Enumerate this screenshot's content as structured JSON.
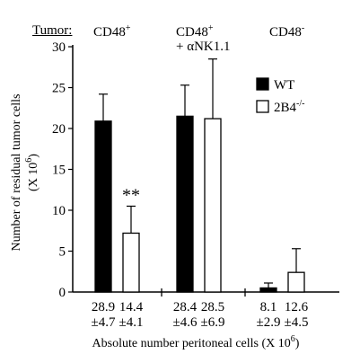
{
  "chart_data": {
    "type": "bar",
    "tumor_label": "Tumor:",
    "groups": [
      {
        "label": "CD48",
        "label_sup": "+",
        "label_line2": ""
      },
      {
        "label": "CD48",
        "label_sup": "+",
        "label_line2": "+ αNK1.1"
      },
      {
        "label": "CD48",
        "label_sup": "-",
        "label_line2": ""
      }
    ],
    "series": [
      {
        "name": "WT",
        "color": "#000000",
        "values": [
          20.9,
          21.5,
          0.5
        ],
        "errors": [
          3.3,
          3.8,
          0.6
        ]
      },
      {
        "name": "2B4",
        "name_sup": "-/-",
        "color": "#ffffff",
        "values": [
          7.2,
          21.2,
          2.4
        ],
        "errors": [
          3.3,
          7.3,
          2.9
        ]
      }
    ],
    "significance": [
      {
        "group": 0,
        "series": 1,
        "label": "**"
      }
    ],
    "cell_counts": [
      [
        "28.9",
        "±4.7"
      ],
      [
        "14.4",
        "±4.1"
      ],
      [
        "28.4",
        "±4.6"
      ],
      [
        "28.5",
        "±6.9"
      ],
      [
        "8.1",
        "±2.9"
      ],
      [
        "12.6",
        "±4.5"
      ]
    ],
    "ylabel_line1": "Number of residual tumor cells",
    "ylabel_line2_pre": "(X 10",
    "ylabel_line2_sup": "6",
    "ylabel_line2_post": ")",
    "xlabel_pre": "Absolute number peritoneal cells (X 10",
    "xlabel_sup": "6",
    "xlabel_post": ")",
    "ylim": [
      0,
      30
    ],
    "yticks": [
      "0",
      "5",
      "10",
      "15",
      "20",
      "25",
      "30"
    ],
    "legend_position": "right"
  }
}
